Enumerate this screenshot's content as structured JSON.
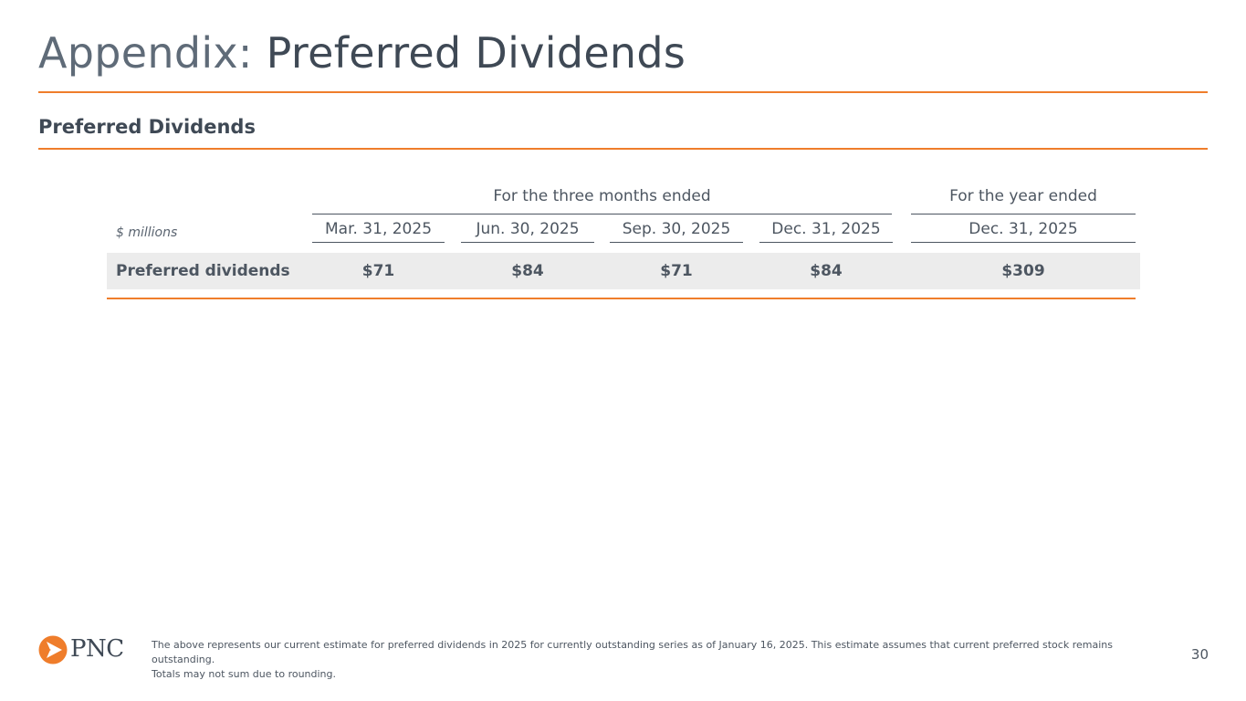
{
  "slide": {
    "title_prefix": "Appendix:",
    "title_main": "Preferred Dividends",
    "section_heading": "Preferred Dividends",
    "page_number": "30"
  },
  "table": {
    "units_label": "$ millions",
    "group_headers": [
      "For the three months ended",
      "For the year ended"
    ],
    "columns": [
      "Mar. 31, 2025",
      "Jun. 30, 2025",
      "Sep. 30, 2025",
      "Dec. 31, 2025",
      "Dec. 31, 2025"
    ],
    "rows": [
      {
        "label": "Preferred dividends",
        "values": [
          "$71",
          "$84",
          "$71",
          "$84",
          "$309"
        ]
      }
    ]
  },
  "footer": {
    "logo_text": "PNC",
    "logo_icon": "pnc-triangle-logo-icon",
    "footnote_line1": "The above represents our current estimate for preferred dividends in 2025 for currently outstanding series as of January 16, 2025. This estimate assumes that current preferred stock remains outstanding.",
    "footnote_line2": "Totals may not sum due to rounding."
  },
  "colors": {
    "accent_orange": "#ef7d2b",
    "text_gray": "#4d5661",
    "row_band": "#ececec"
  }
}
